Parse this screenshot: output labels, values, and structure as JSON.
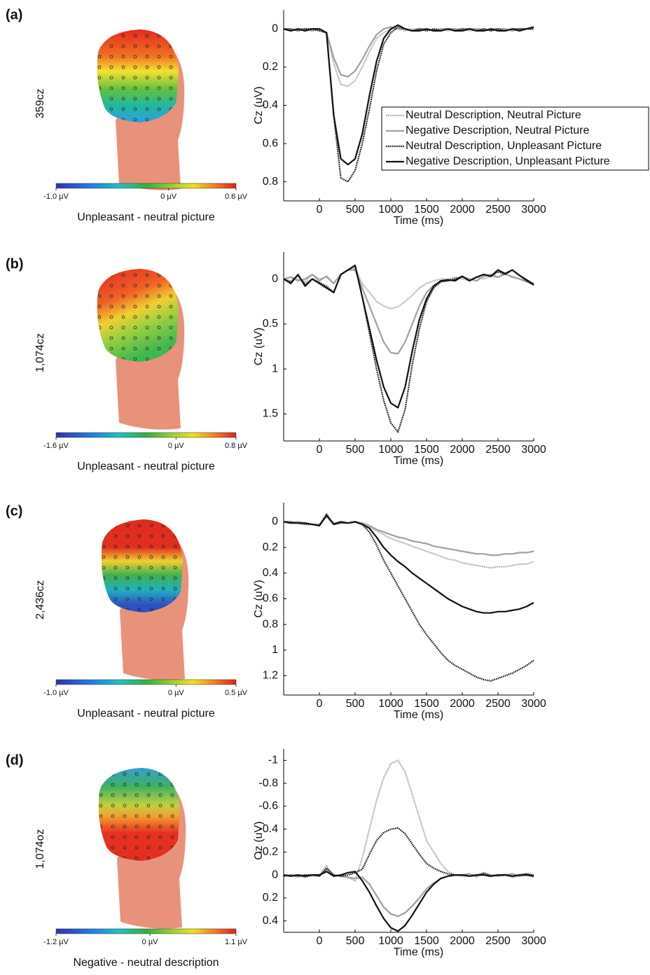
{
  "chart_data": [
    {
      "type": "line",
      "panel_label": "(a)",
      "topo_label": "359cz",
      "colorbar": {
        "lim": [
          -1.0,
          0.6
        ],
        "ticks": [
          {
            "value": -1.0,
            "label": "-1.0 µV"
          },
          {
            "value": 0,
            "label": "0 µV"
          },
          {
            "value": 0.6,
            "label": "0.6 µV"
          }
        ],
        "label": "Unpleasant - neutral picture"
      },
      "xlabel": "Time (ms)",
      "ylabel": "Cz (uV)",
      "y_inverted": true,
      "legend": "right",
      "xlim": [
        -500,
        3000
      ],
      "xticks": [
        0,
        500,
        1000,
        1500,
        2000,
        2500,
        3000
      ],
      "ylim": [
        -0.1,
        0.9
      ],
      "yticks": [
        0,
        0.2,
        0.4,
        0.6,
        0.8
      ],
      "x": [
        -500,
        -400,
        -300,
        -200,
        -100,
        0,
        100,
        200,
        300,
        400,
        500,
        600,
        700,
        800,
        900,
        1000,
        1100,
        1200,
        1300,
        1400,
        1500,
        1600,
        1700,
        1800,
        1900,
        2000,
        2100,
        2200,
        2300,
        2400,
        2500,
        2600,
        2700,
        2800,
        2900,
        3000
      ],
      "series": [
        {
          "name": "Neutral Description, Neutral Picture",
          "color": "#a8a8a8",
          "dash": "dotted",
          "values": [
            0,
            0,
            0.01,
            0,
            0,
            0.01,
            0.02,
            0.18,
            0.29,
            0.3,
            0.27,
            0.2,
            0.12,
            0.05,
            0.02,
            0,
            0,
            0.01,
            0,
            0,
            0.01,
            0,
            0,
            0.01,
            0,
            0,
            0.01,
            0,
            0,
            0.01,
            0,
            0,
            0.01,
            0,
            0,
            0
          ]
        },
        {
          "name": "Negative Description, Neutral Picture",
          "color": "#a0a0a0",
          "dash": "solid",
          "values": [
            0,
            0.01,
            0,
            0,
            0.01,
            0,
            0.02,
            0.15,
            0.24,
            0.25,
            0.22,
            0.16,
            0.09,
            0.03,
            0,
            -0.01,
            0,
            0,
            0.01,
            0,
            0,
            0.01,
            0,
            0,
            0,
            0.01,
            0,
            0,
            0.01,
            0,
            0,
            0,
            0.01,
            0,
            0,
            0
          ]
        },
        {
          "name": "Neutral Description, Unpleasant Picture",
          "color": "#111111",
          "dash": "dotted",
          "values": [
            0,
            0,
            0.01,
            0,
            0,
            0.01,
            0.02,
            0.45,
            0.78,
            0.8,
            0.74,
            0.6,
            0.42,
            0.22,
            0.08,
            0.02,
            -0.01,
            0,
            0.01,
            0,
            0.01,
            0,
            0.01,
            0,
            0.01,
            0,
            0,
            0.01,
            0,
            0.01,
            0,
            0.01,
            0,
            0,
            0,
            0
          ]
        },
        {
          "name": "Negative Description, Unpleasant Picture",
          "color": "#111111",
          "dash": "solid",
          "values": [
            0,
            0.01,
            0,
            0.01,
            0,
            0,
            0.02,
            0.45,
            0.68,
            0.71,
            0.68,
            0.55,
            0.35,
            0.17,
            0.05,
            0,
            -0.02,
            0,
            0.01,
            0.01,
            0,
            0.01,
            0.01,
            0,
            0.01,
            0.01,
            0,
            0.01,
            0.01,
            0,
            0.01,
            0.01,
            0,
            0.01,
            0,
            -0.01
          ]
        }
      ]
    },
    {
      "type": "line",
      "panel_label": "(b)",
      "topo_label": "1,074cz",
      "colorbar": {
        "lim": [
          -1.6,
          0.8
        ],
        "ticks": [
          {
            "value": -1.6,
            "label": "-1.6 µV"
          },
          {
            "value": 0,
            "label": "0 µV"
          },
          {
            "value": 0.8,
            "label": "0.8 µV"
          }
        ],
        "label": "Unpleasant - neutral picture"
      },
      "xlabel": "Time (ms)",
      "ylabel": "Cz (uV)",
      "y_inverted": true,
      "xlim": [
        -500,
        3000
      ],
      "xticks": [
        0,
        500,
        1000,
        1500,
        2000,
        2500,
        3000
      ],
      "ylim": [
        -0.3,
        1.8
      ],
      "yticks": [
        0,
        0.5,
        1,
        1.5
      ],
      "x": [
        -500,
        -400,
        -300,
        -200,
        -100,
        0,
        100,
        200,
        300,
        400,
        500,
        600,
        700,
        800,
        900,
        1000,
        1100,
        1200,
        1300,
        1400,
        1500,
        1600,
        1700,
        1800,
        1900,
        2000,
        2100,
        2200,
        2300,
        2400,
        2500,
        2600,
        2700,
        2800,
        2900,
        3000
      ],
      "series": [
        {
          "color": "#a8a8a8",
          "dash": "dotted",
          "values": [
            0,
            -0.02,
            0,
            0.03,
            -0.05,
            0,
            -0.02,
            0.05,
            -0.05,
            -0.1,
            -0.12,
            0.05,
            0.15,
            0.25,
            0.3,
            0.33,
            0.31,
            0.25,
            0.18,
            0.1,
            0.05,
            0.02,
            0,
            0,
            -0.02,
            0,
            0.02,
            -0.02,
            0,
            -0.03,
            -0.02,
            -0.05,
            -0.03,
            0,
            0.02,
            0.05
          ]
        },
        {
          "color": "#a0a0a0",
          "dash": "solid",
          "values": [
            0,
            -0.02,
            0.02,
            0,
            -0.05,
            0.02,
            -0.03,
            0.05,
            -0.05,
            -0.1,
            -0.1,
            0.1,
            0.3,
            0.5,
            0.7,
            0.82,
            0.83,
            0.7,
            0.5,
            0.3,
            0.15,
            0.07,
            0.03,
            0.02,
            0,
            -0.02,
            0,
            0.02,
            -0.03,
            -0.05,
            -0.02,
            -0.06,
            -0.02,
            0,
            0.03,
            0.06
          ]
        },
        {
          "color": "#111111",
          "dash": "dotted",
          "values": [
            0,
            0.03,
            -0.04,
            0.06,
            0,
            0.04,
            0.08,
            0.15,
            -0.05,
            -0.1,
            -0.15,
            0.2,
            0.6,
            1.0,
            1.35,
            1.6,
            1.7,
            1.45,
            0.95,
            0.55,
            0.25,
            0.1,
            0.03,
            0.02,
            0,
            -0.03,
            0.02,
            -0.02,
            -0.05,
            -0.03,
            -0.08,
            -0.05,
            -0.1,
            -0.04,
            0.02,
            0.07
          ]
        },
        {
          "color": "#111111",
          "dash": "solid",
          "values": [
            0,
            0.05,
            -0.05,
            0.08,
            0,
            0.05,
            0.1,
            0.15,
            -0.05,
            -0.1,
            -0.15,
            0.2,
            0.55,
            0.9,
            1.2,
            1.38,
            1.43,
            1.2,
            0.8,
            0.45,
            0.22,
            0.08,
            0.02,
            0.01,
            0.02,
            -0.03,
            0.02,
            -0.02,
            -0.05,
            -0.03,
            -0.1,
            -0.06,
            -0.1,
            -0.04,
            0.01,
            0.06
          ]
        }
      ]
    },
    {
      "type": "line",
      "panel_label": "(c)",
      "topo_label": "2,436cz",
      "colorbar": {
        "lim": [
          -1.0,
          0.5
        ],
        "ticks": [
          {
            "value": -1.0,
            "label": "-1.0 µV"
          },
          {
            "value": 0,
            "label": "0 µV"
          },
          {
            "value": 0.5,
            "label": "0.5 µV"
          }
        ],
        "label": "Unpleasant - neutral picture"
      },
      "xlabel": "Time (ms)",
      "ylabel": "Cz (uV)",
      "y_inverted": true,
      "xlim": [
        -500,
        3000
      ],
      "xticks": [
        0,
        500,
        1000,
        1500,
        2000,
        2500,
        3000
      ],
      "ylim": [
        -0.15,
        1.35
      ],
      "yticks": [
        0,
        0.2,
        0.4,
        0.6,
        0.8,
        1,
        1.2
      ],
      "x": [
        -500,
        -400,
        -300,
        -200,
        -100,
        0,
        100,
        200,
        300,
        400,
        500,
        600,
        700,
        800,
        900,
        1000,
        1100,
        1200,
        1300,
        1400,
        1500,
        1600,
        1700,
        1800,
        1900,
        2000,
        2100,
        2200,
        2300,
        2400,
        2500,
        2600,
        2700,
        2800,
        2900,
        3000
      ],
      "series": [
        {
          "color": "#a8a8a8",
          "dash": "dotted",
          "values": [
            0,
            0,
            0.01,
            0.01,
            0.02,
            0.03,
            -0.05,
            0.02,
            0,
            0.01,
            0,
            0.02,
            0.04,
            0.07,
            0.1,
            0.13,
            0.15,
            0.17,
            0.19,
            0.21,
            0.23,
            0.25,
            0.27,
            0.29,
            0.3,
            0.32,
            0.33,
            0.34,
            0.35,
            0.36,
            0.35,
            0.35,
            0.34,
            0.33,
            0.33,
            0.31
          ]
        },
        {
          "color": "#a0a0a0",
          "dash": "solid",
          "values": [
            0,
            0.01,
            0,
            0.01,
            0.02,
            0.02,
            -0.04,
            0.01,
            0,
            0.01,
            0,
            0.01,
            0.03,
            0.06,
            0.08,
            0.1,
            0.12,
            0.13,
            0.15,
            0.16,
            0.17,
            0.19,
            0.2,
            0.21,
            0.22,
            0.23,
            0.24,
            0.25,
            0.25,
            0.26,
            0.26,
            0.25,
            0.25,
            0.24,
            0.24,
            0.23
          ]
        },
        {
          "color": "#111111",
          "dash": "dotted",
          "values": [
            0,
            0,
            0.01,
            0.02,
            0.02,
            0.03,
            -0.06,
            0.02,
            0.01,
            0.01,
            0,
            0.02,
            0.08,
            0.18,
            0.3,
            0.4,
            0.5,
            0.6,
            0.7,
            0.8,
            0.88,
            0.95,
            1.02,
            1.08,
            1.12,
            1.15,
            1.18,
            1.21,
            1.23,
            1.24,
            1.22,
            1.2,
            1.18,
            1.15,
            1.12,
            1.08
          ]
        },
        {
          "color": "#111111",
          "dash": "solid",
          "values": [
            0,
            0.01,
            0.01,
            0.01,
            0.02,
            0.03,
            -0.05,
            0.02,
            0,
            0.01,
            0,
            0.02,
            0.05,
            0.12,
            0.2,
            0.26,
            0.31,
            0.35,
            0.4,
            0.44,
            0.48,
            0.52,
            0.56,
            0.6,
            0.63,
            0.66,
            0.68,
            0.7,
            0.71,
            0.71,
            0.7,
            0.7,
            0.69,
            0.68,
            0.66,
            0.63
          ]
        }
      ]
    },
    {
      "type": "line",
      "panel_label": "(d)",
      "topo_label": "1,074oz",
      "colorbar": {
        "lim": [
          -1.2,
          1.1
        ],
        "ticks": [
          {
            "value": -1.2,
            "label": "-1.2 µV"
          },
          {
            "value": 0,
            "label": "0 µV"
          },
          {
            "value": 1.1,
            "label": "1.1 µV"
          }
        ],
        "label": "Negative - neutral description"
      },
      "xlabel": "Time (ms)",
      "ylabel": "Oz (uV)",
      "y_inverted": true,
      "xlim": [
        -500,
        3000
      ],
      "xticks": [
        0,
        500,
        1000,
        1500,
        2000,
        2500,
        3000
      ],
      "ylim": [
        -1.1,
        0.5
      ],
      "yticks": [
        -1,
        -0.8,
        -0.6,
        -0.4,
        -0.2,
        0,
        0.2,
        0.4
      ],
      "x": [
        -500,
        -400,
        -300,
        -200,
        -100,
        0,
        100,
        200,
        300,
        400,
        500,
        600,
        700,
        800,
        900,
        1000,
        1100,
        1200,
        1300,
        1400,
        1500,
        1600,
        1700,
        1800,
        1900,
        2000,
        2100,
        2200,
        2300,
        2400,
        2500,
        2600,
        2700,
        2800,
        2900,
        3000
      ],
      "series": [
        {
          "color": "#a8a8a8",
          "dash": "dotted",
          "values": [
            0.01,
            0,
            0.02,
            0,
            0.01,
            0,
            -0.08,
            0.01,
            0,
            0.02,
            0.05,
            -0.15,
            -0.4,
            -0.65,
            -0.85,
            -0.97,
            -1.0,
            -0.9,
            -0.7,
            -0.5,
            -0.3,
            -0.2,
            -0.1,
            -0.03,
            0,
            0.01,
            -0.01,
            0.02,
            -0.02,
            0,
            0.01,
            -0.01,
            0.02,
            0.01,
            -0.01,
            0.02
          ]
        },
        {
          "color": "#a0a0a0",
          "dash": "solid",
          "values": [
            0,
            0.01,
            0,
            0.02,
            0,
            0.01,
            -0.05,
            0,
            0.01,
            0.02,
            0.03,
            0.02,
            0.08,
            0.18,
            0.28,
            0.34,
            0.36,
            0.33,
            0.27,
            0.2,
            0.12,
            0.07,
            0.03,
            0.01,
            0,
            0,
            -0.01,
            0.01,
            -0.02,
            0,
            0.01,
            0,
            -0.01,
            0.01,
            0,
            0.01
          ]
        },
        {
          "color": "#111111",
          "dash": "dotted",
          "values": [
            0.01,
            0,
            0.01,
            0,
            0,
            0.01,
            -0.06,
            0,
            0.01,
            0,
            -0.02,
            -0.05,
            -0.18,
            -0.3,
            -0.37,
            -0.4,
            -0.41,
            -0.36,
            -0.27,
            -0.18,
            -0.1,
            -0.06,
            -0.03,
            -0.01,
            0,
            0,
            0.01,
            0,
            -0.01,
            0.01,
            0,
            0,
            0.01,
            0,
            -0.01,
            0
          ]
        },
        {
          "color": "#111111",
          "dash": "solid",
          "values": [
            0,
            0.01,
            0,
            0.01,
            0,
            0,
            -0.03,
            0.01,
            0,
            -0.02,
            -0.03,
            0.05,
            0.15,
            0.27,
            0.38,
            0.46,
            0.49,
            0.44,
            0.35,
            0.25,
            0.15,
            0.08,
            0.03,
            0.01,
            0,
            0,
            0.01,
            0,
            0,
            0.01,
            0,
            0,
            0.01,
            0,
            0,
            0.01
          ]
        }
      ]
    }
  ]
}
